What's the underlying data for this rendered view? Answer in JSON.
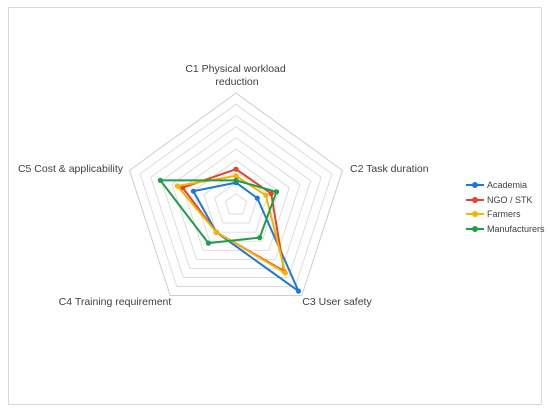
{
  "chart_data": {
    "type": "radar",
    "title": "",
    "axes": [
      [
        "C1 Physical workload",
        "reduction"
      ],
      [
        "C2 Task duration"
      ],
      [
        "C3 User safety"
      ],
      [
        "C4 Training requirement"
      ],
      [
        "C5 Cost & applicability"
      ]
    ],
    "rmax": 10,
    "grid_rings": 10,
    "grid": true,
    "legend_position": "right",
    "series": [
      {
        "name": "Academia",
        "color": "#1f77d6",
        "values": [
          2.0,
          2.0,
          9.5,
          3.0,
          4.0
        ]
      },
      {
        "name": "NGO / STK",
        "color": "#e8412c",
        "values": [
          3.2,
          3.3,
          7.3,
          3.0,
          5.0
        ]
      },
      {
        "name": "Farmers",
        "color": "#f4b400",
        "values": [
          2.6,
          2.8,
          7.5,
          3.0,
          5.5
        ]
      },
      {
        "name": "Manufacturers",
        "color": "#1e9e4a",
        "values": [
          2.2,
          3.8,
          3.6,
          4.2,
          7.1
        ]
      }
    ]
  }
}
